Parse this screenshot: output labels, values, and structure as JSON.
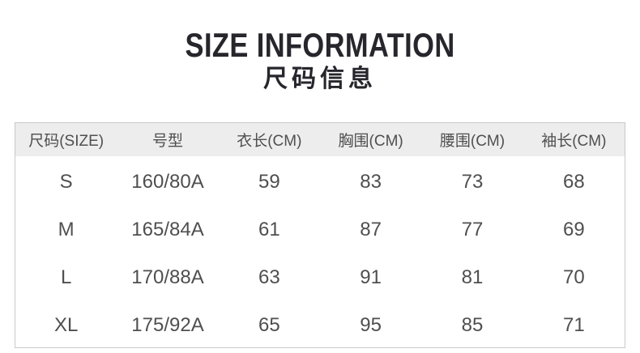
{
  "header": {
    "title_en": "SIZE INFORMATION",
    "title_cn": "尺码信息"
  },
  "table": {
    "headers": [
      "尺码(SIZE)",
      "号型",
      "衣长(CM)",
      "胸围(CM)",
      "腰围(CM)",
      "袖长(CM)"
    ],
    "rows": [
      [
        "S",
        "160/80A",
        "59",
        "83",
        "73",
        "68"
      ],
      [
        "M",
        "165/84A",
        "61",
        "87",
        "77",
        "69"
      ],
      [
        "L",
        "170/88A",
        "63",
        "91",
        "81",
        "70"
      ],
      [
        "XL",
        "175/92A",
        "65",
        "95",
        "85",
        "71"
      ]
    ]
  },
  "colors": {
    "title_text": "#26262c",
    "table_text": "#4f4f4f",
    "header_row_bg": "#ededed",
    "table_border": "#c9c9c9",
    "page_bg": "#ffffff"
  }
}
